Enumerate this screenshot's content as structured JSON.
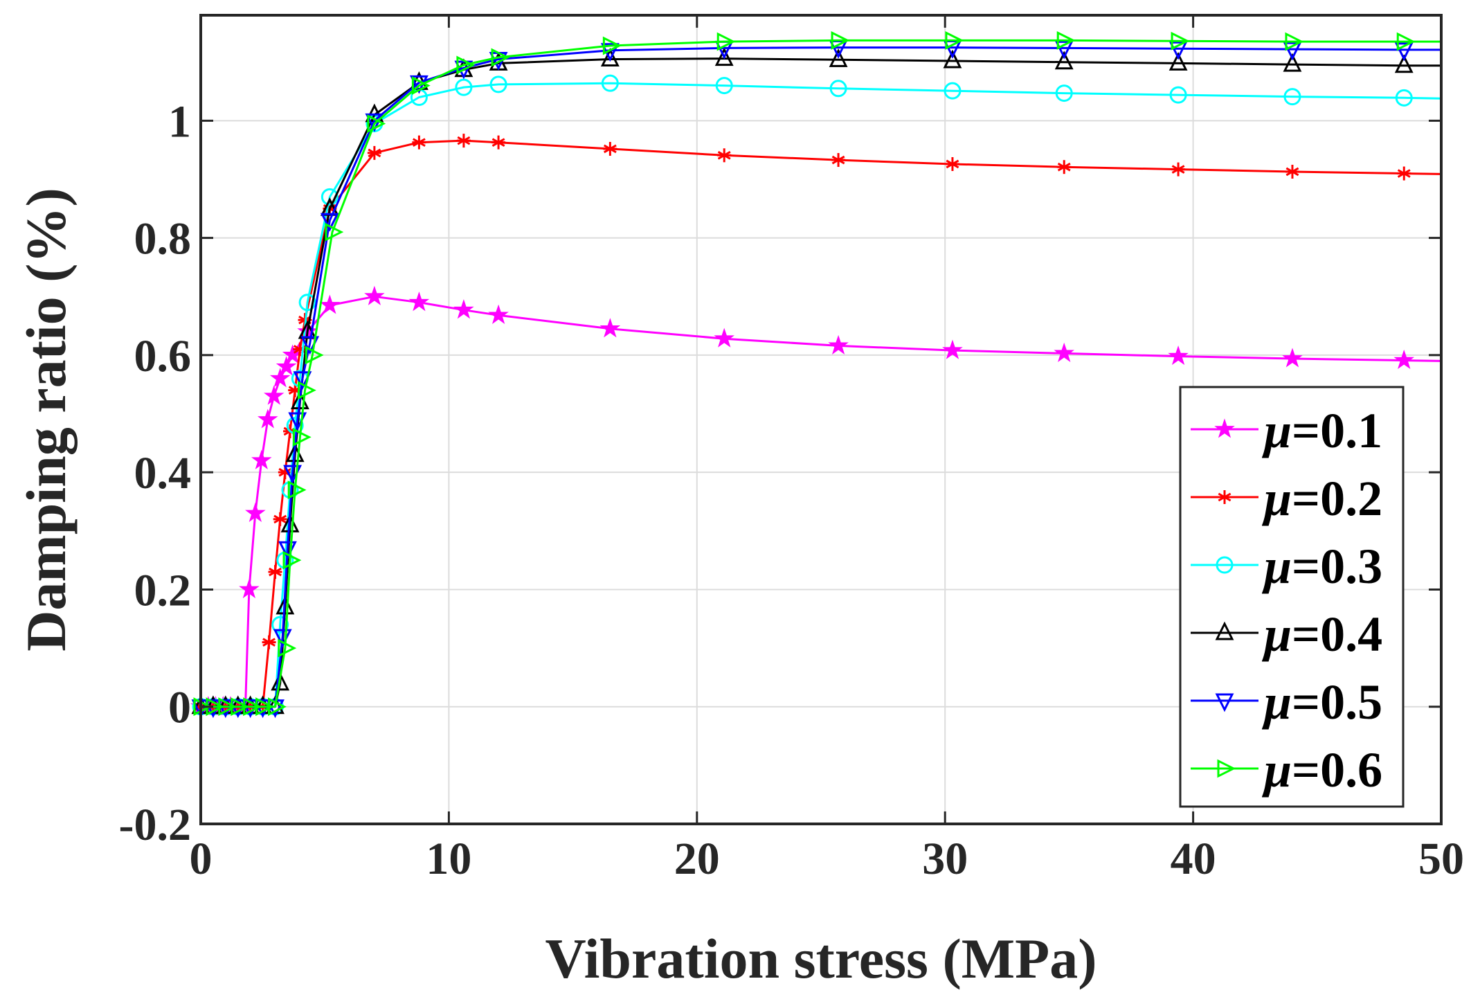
{
  "chart_data": {
    "type": "line",
    "title": "",
    "xlabel": "Vibration stress (MPa)",
    "ylabel": "Damping ratio (%)",
    "xlim": [
      0,
      50
    ],
    "ylim": [
      -0.2,
      1.18
    ],
    "xticks": [
      "0",
      "10",
      "20",
      "30",
      "40",
      "50"
    ],
    "yticks": [
      "-0.2",
      "0",
      "0.2",
      "0.4",
      "0.6",
      "0.8",
      "1"
    ],
    "grid": true,
    "legend_position": "bottom-right",
    "series": [
      {
        "name": "μ=0.1",
        "label_mu": "μ",
        "label_value": "=0.1",
        "color": "#ff00ff",
        "marker": "star",
        "x": [
          0,
          0.3,
          0.6,
          0.9,
          1.2,
          1.5,
          1.8,
          1.95,
          2.2,
          2.45,
          2.7,
          2.95,
          3.2,
          3.45,
          3.7,
          4.3,
          5.2,
          7.0,
          8.8,
          10.6,
          12.0,
          16.5,
          21.1,
          25.7,
          30.3,
          34.8,
          39.4,
          44.0,
          48.5,
          50
        ],
        "y": [
          0,
          0,
          0,
          0,
          0,
          0,
          0,
          0.2,
          0.33,
          0.42,
          0.49,
          0.53,
          0.56,
          0.58,
          0.6,
          0.64,
          0.685,
          0.7,
          0.69,
          0.677,
          0.668,
          0.645,
          0.628,
          0.616,
          0.608,
          0.603,
          0.598,
          0.594,
          0.591,
          0.59
        ]
      },
      {
        "name": "μ=0.2",
        "label_mu": "μ",
        "label_value": "=0.2",
        "color": "#ff0000",
        "marker": "asterisk",
        "x": [
          0,
          0.5,
          1.0,
          1.5,
          2.0,
          2.5,
          2.75,
          3.0,
          3.2,
          3.4,
          3.6,
          3.8,
          4.0,
          4.2,
          5.2,
          7.0,
          8.8,
          10.6,
          12.0,
          16.5,
          21.1,
          25.7,
          30.3,
          34.8,
          39.4,
          44.0,
          48.5,
          50
        ],
        "y": [
          0,
          0,
          0,
          0,
          0,
          0,
          0.11,
          0.23,
          0.32,
          0.4,
          0.47,
          0.54,
          0.61,
          0.66,
          0.85,
          0.945,
          0.963,
          0.966,
          0.963,
          0.952,
          0.941,
          0.933,
          0.926,
          0.921,
          0.917,
          0.913,
          0.91,
          0.909
        ]
      },
      {
        "name": "μ=0.3",
        "label_mu": "μ",
        "label_value": "=0.3",
        "color": "#00ffff",
        "marker": "circle",
        "x": [
          0,
          0.5,
          1.0,
          1.5,
          2.0,
          2.5,
          3.0,
          3.2,
          3.4,
          3.6,
          3.8,
          4.0,
          4.3,
          5.2,
          7.0,
          8.8,
          10.6,
          12.0,
          16.5,
          21.1,
          25.7,
          30.3,
          34.8,
          39.4,
          44.0,
          48.5,
          50
        ],
        "y": [
          0,
          0,
          0,
          0,
          0,
          0,
          0,
          0.14,
          0.25,
          0.37,
          0.48,
          0.56,
          0.69,
          0.87,
          0.995,
          1.04,
          1.057,
          1.062,
          1.064,
          1.06,
          1.055,
          1.051,
          1.047,
          1.044,
          1.041,
          1.039,
          1.038
        ]
      },
      {
        "name": "μ=0.4",
        "label_mu": "μ",
        "label_value": "=0.4",
        "color": "#000000",
        "marker": "triangle-up",
        "x": [
          0,
          0.5,
          1.0,
          1.5,
          2.0,
          2.5,
          3.0,
          3.2,
          3.4,
          3.6,
          3.8,
          4.0,
          4.3,
          5.2,
          7.0,
          8.8,
          10.6,
          12.0,
          16.5,
          21.1,
          25.7,
          30.3,
          34.8,
          39.4,
          44.0,
          48.5,
          50
        ],
        "y": [
          0,
          0,
          0,
          0,
          0,
          0,
          0,
          0.04,
          0.17,
          0.31,
          0.43,
          0.52,
          0.64,
          0.85,
          1.01,
          1.065,
          1.087,
          1.098,
          1.105,
          1.106,
          1.104,
          1.102,
          1.1,
          1.098,
          1.096,
          1.094,
          1.094
        ]
      },
      {
        "name": "μ=0.5",
        "label_mu": "μ",
        "label_value": "=0.5",
        "color": "#0000ff",
        "marker": "triangle-down",
        "x": [
          0,
          0.5,
          1.0,
          1.5,
          2.0,
          2.5,
          3.0,
          3.3,
          3.5,
          3.7,
          3.9,
          4.1,
          4.4,
          5.2,
          7.0,
          8.8,
          10.6,
          12.0,
          16.5,
          21.1,
          25.7,
          30.3,
          34.8,
          39.4,
          44.0,
          48.5,
          50
        ],
        "y": [
          0,
          0,
          0,
          0,
          0,
          0,
          0,
          0.12,
          0.27,
          0.4,
          0.49,
          0.56,
          0.62,
          0.83,
          1.0,
          1.065,
          1.09,
          1.105,
          1.12,
          1.124,
          1.125,
          1.125,
          1.124,
          1.123,
          1.122,
          1.121,
          1.121
        ]
      },
      {
        "name": "μ=0.6",
        "label_mu": "μ",
        "label_value": "=0.6",
        "color": "#00ff00",
        "marker": "triangle-right",
        "x": [
          0,
          0.5,
          1.0,
          1.5,
          2.0,
          2.5,
          3.0,
          3.4,
          3.6,
          3.8,
          4.0,
          4.2,
          4.5,
          5.3,
          7.0,
          8.8,
          10.6,
          12.0,
          16.5,
          21.1,
          25.7,
          30.3,
          34.8,
          39.4,
          44.0,
          48.5,
          50
        ],
        "y": [
          0,
          0,
          0,
          0,
          0,
          0,
          0,
          0.1,
          0.25,
          0.37,
          0.46,
          0.54,
          0.6,
          0.81,
          0.995,
          1.06,
          1.095,
          1.108,
          1.128,
          1.135,
          1.137,
          1.137,
          1.137,
          1.136,
          1.135,
          1.135,
          1.135
        ]
      }
    ]
  }
}
